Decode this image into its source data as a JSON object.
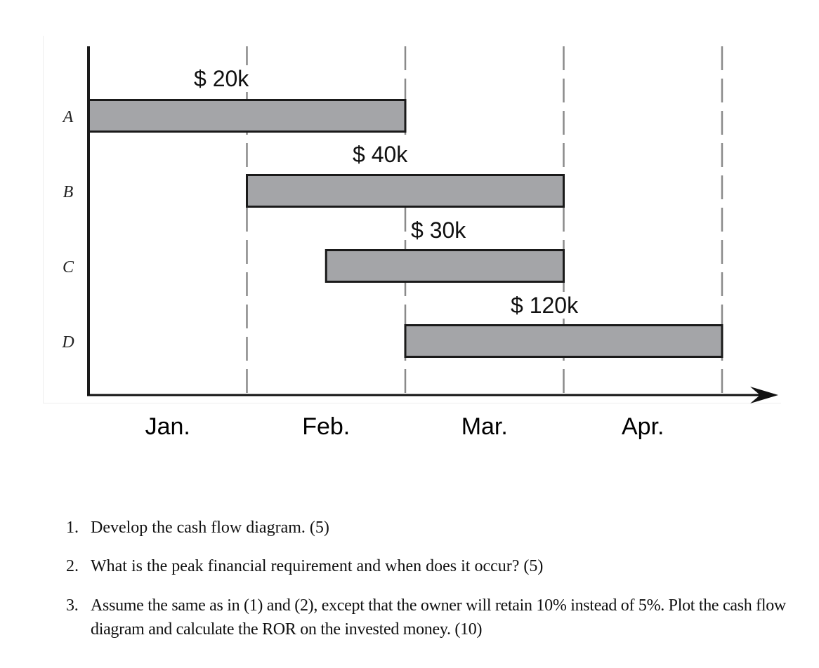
{
  "chart_data": {
    "type": "gantt",
    "title": "",
    "xlabel": "",
    "ylabel": "",
    "categories": [
      "Jan.",
      "Feb.",
      "Mar.",
      "Apr."
    ],
    "tasks": [
      {
        "name": "A",
        "cost_label": "$ 20k",
        "cost": 20000,
        "start_month": 0,
        "end_month": 2
      },
      {
        "name": "B",
        "cost_label": "$ 40k",
        "cost": 40000,
        "start_month": 1,
        "end_month": 3
      },
      {
        "name": "C",
        "cost_label": "$ 30k",
        "cost": 30000,
        "start_month": 1.5,
        "end_month": 3
      },
      {
        "name": "D",
        "cost_label": "$ 120k",
        "cost": 120000,
        "start_month": 2,
        "end_month": 4
      }
    ],
    "x_range": [
      0,
      4
    ],
    "grid": "dashed vertical lines at month boundaries",
    "bar_color": "#a4a5a8",
    "bar_border_color": "#1a1a1a"
  },
  "questions": [
    {
      "number": "1.",
      "text": "Develop the cash flow diagram. (5)"
    },
    {
      "number": "2.",
      "text": "What is the peak financial requirement and when does it occur? (5)"
    },
    {
      "number": "3.",
      "text": "Assume the same as in (1) and (2), except that the owner will retain 10% instead of 5%. Plot the cash flow diagram and calculate the ROR on the invested money. (10)"
    }
  ]
}
